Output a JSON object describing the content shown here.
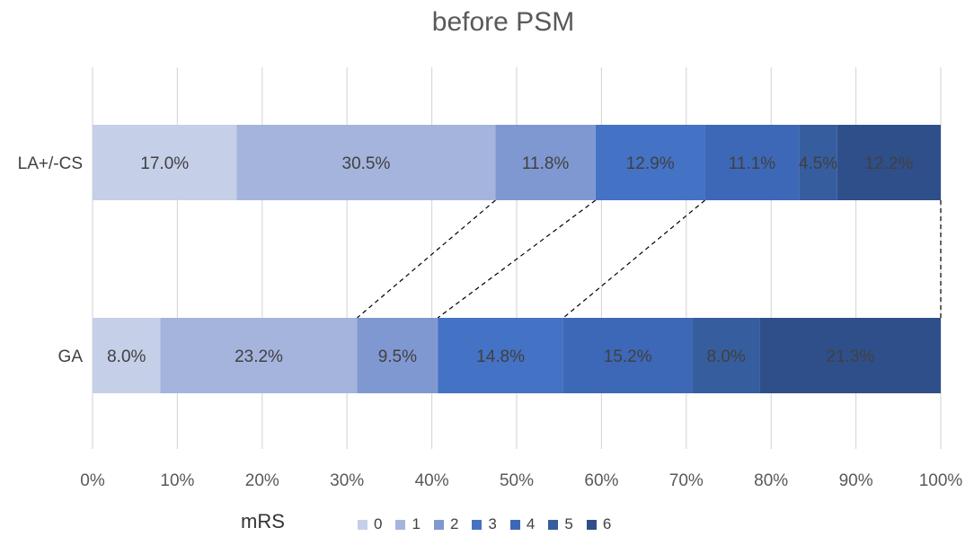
{
  "chart_data": {
    "type": "bar",
    "orientation": "horizontal",
    "stacked": "percent",
    "title": "before PSM",
    "categories": [
      "LA+/-CS",
      "GA"
    ],
    "series": [
      {
        "name": "0",
        "color": "#c5cfe8",
        "values": [
          17.0,
          8.0
        ],
        "labels": [
          "17.0%",
          "8.0%"
        ]
      },
      {
        "name": "1",
        "color": "#a4b4dd",
        "values": [
          30.5,
          23.2
        ],
        "labels": [
          "30.5%",
          "23.2%"
        ]
      },
      {
        "name": "2",
        "color": "#8098d1",
        "values": [
          11.8,
          9.5
        ],
        "labels": [
          "11.8%",
          "9.5%"
        ]
      },
      {
        "name": "3",
        "color": "#4472c4",
        "values": [
          12.9,
          14.8
        ],
        "labels": [
          "12.9%",
          "14.8%"
        ]
      },
      {
        "name": "4",
        "color": "#3d68b8",
        "values": [
          11.1,
          15.2
        ],
        "labels": [
          "11.1%",
          "15.2%"
        ]
      },
      {
        "name": "5",
        "color": "#365d9e",
        "values": [
          4.5,
          8.0
        ],
        "labels": [
          "4.5%",
          "8.0%"
        ]
      },
      {
        "name": "6",
        "color": "#2f4f8a",
        "values": [
          12.2,
          21.3
        ],
        "labels": [
          "12.2%",
          "21.3%"
        ]
      }
    ],
    "x_ticks": [
      "0%",
      "10%",
      "20%",
      "30%",
      "40%",
      "50%",
      "60%",
      "70%",
      "80%",
      "90%",
      "100%"
    ],
    "xlim": [
      0,
      100
    ],
    "grid": true,
    "legend": {
      "title": "mRS",
      "position": "bottom"
    },
    "connector_lines": [
      {
        "from_cumulative": 47.5,
        "to_cumulative": 31.2
      },
      {
        "from_cumulative": 59.3,
        "to_cumulative": 40.7
      },
      {
        "from_cumulative": 72.2,
        "to_cumulative": 55.5
      },
      {
        "from_cumulative": 100,
        "to_cumulative": 100
      }
    ]
  }
}
